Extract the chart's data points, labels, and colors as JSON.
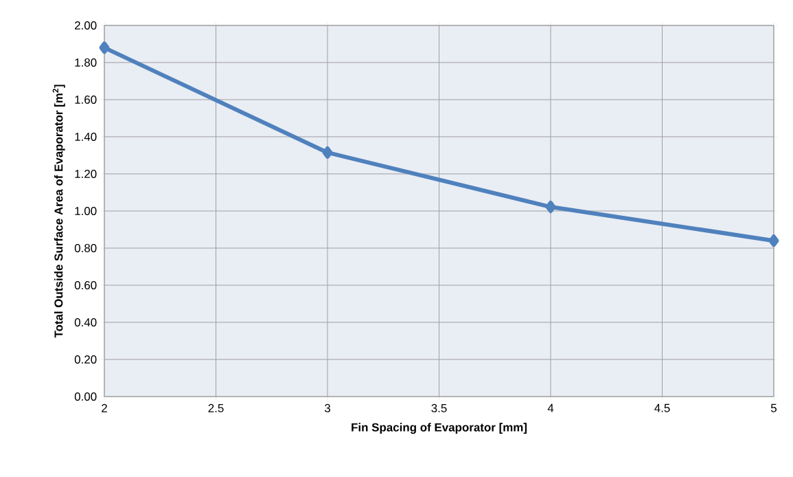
{
  "chart_data": {
    "type": "line",
    "xlabel": "Fin Spacing of Evaporator [mm]",
    "ylabel": "Total Outside Surface Area of Evaporator [m$^{2}$]",
    "x": [
      2,
      3,
      4,
      5
    ],
    "series": [
      {
        "color": "#4f81bd",
        "values": [
          1.88,
          1.315,
          1.022,
          0.84
        ]
      }
    ],
    "xlim": [
      2,
      5
    ],
    "xticks": [
      2,
      2.5,
      3,
      3.5,
      4,
      4.5,
      5
    ],
    "ylim": [
      0,
      2
    ],
    "yticks": [
      {
        "value": 0,
        "label": "0.00"
      },
      {
        "value": 0.2,
        "label": "0.20"
      },
      {
        "value": 0.4,
        "label": "0.40"
      },
      {
        "value": 0.6,
        "label": "0.60"
      },
      {
        "value": 0.8,
        "label": "0.80"
      },
      {
        "value": 1.0,
        "label": "1.00"
      },
      {
        "value": 1.2,
        "label": "1.20"
      },
      {
        "value": 1.4,
        "label": "1.40"
      },
      {
        "value": 1.6,
        "label": "1.60"
      },
      {
        "value": 1.8,
        "label": "1.80"
      },
      {
        "value": 2.0,
        "label": "2.00"
      }
    ],
    "grid": true,
    "marker": "diamond",
    "line_style": "solid"
  }
}
